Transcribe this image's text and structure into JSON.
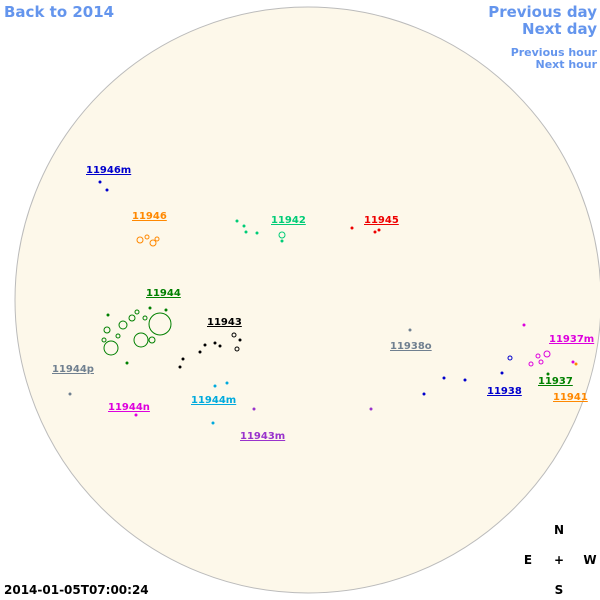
{
  "navigation": {
    "back": "Back to 2014",
    "previous_day": "Previous day",
    "next_day": "Next day",
    "previous_hour": "Previous hour",
    "next_hour": "Next hour"
  },
  "regions": [
    {
      "label": "11946m",
      "color": "#0000cc"
    },
    {
      "label": "11946",
      "color": "#ff8800"
    },
    {
      "label": "11942",
      "color": "#00cc77"
    },
    {
      "label": "11945",
      "color": "#ee0000"
    },
    {
      "label": "11944",
      "color": "#008000"
    },
    {
      "label": "11943",
      "color": "#000000"
    },
    {
      "label": "11938o",
      "color": "#708090"
    },
    {
      "label": "11937m",
      "color": "#dd00dd"
    },
    {
      "label": "11944p",
      "color": "#708090"
    },
    {
      "label": "11937",
      "color": "#008000"
    },
    {
      "label": "11938",
      "color": "#0000cc"
    },
    {
      "label": "11941",
      "color": "#ff8800"
    },
    {
      "label": "11944n",
      "color": "#dd00dd"
    },
    {
      "label": "11944m",
      "color": "#00aadd"
    },
    {
      "label": "11943m",
      "color": "#9933cc"
    }
  ],
  "compass": {
    "north": "N",
    "east": "E",
    "center": "+",
    "west": "W",
    "south": "S"
  },
  "timestamp": "2014-01-05T07:00:24"
}
